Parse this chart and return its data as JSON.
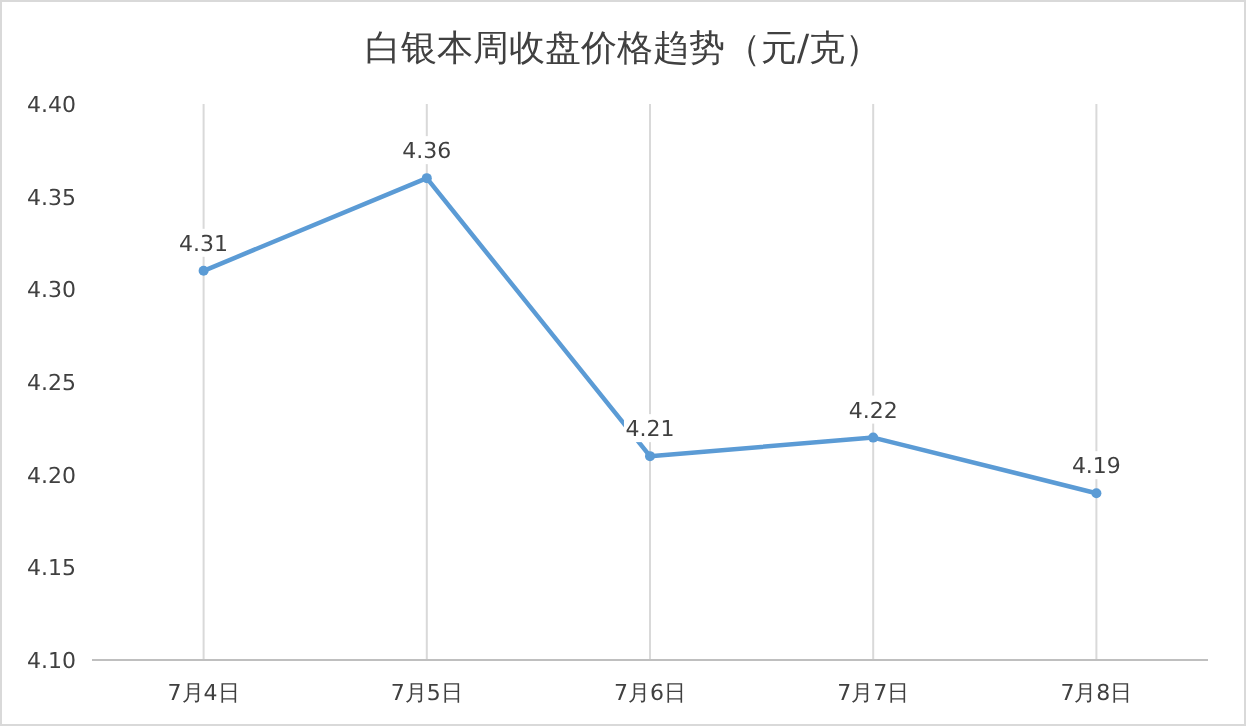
{
  "chart_data": {
    "type": "line",
    "title": "白银本周收盘价格趋势（元/克）",
    "categories": [
      "7月4日",
      "7月5日",
      "7月6日",
      "7月7日",
      "7月8日"
    ],
    "series": [
      {
        "color": "#5b9bd5",
        "values": [
          4.31,
          4.36,
          4.21,
          4.22,
          4.19
        ]
      }
    ],
    "ylim": [
      4.1,
      4.4
    ],
    "yticks": [
      {
        "value": 4.1,
        "label": "4.10"
      },
      {
        "value": 4.15,
        "label": "4.15"
      },
      {
        "value": 4.2,
        "label": "4.20"
      },
      {
        "value": 4.25,
        "label": "4.25"
      },
      {
        "value": 4.3,
        "label": "4.30"
      },
      {
        "value": 4.35,
        "label": "4.35"
      },
      {
        "value": 4.4,
        "label": "4.40"
      }
    ],
    "grid": "x",
    "marker": "circle",
    "line_style": "solid",
    "data_labels": true
  }
}
